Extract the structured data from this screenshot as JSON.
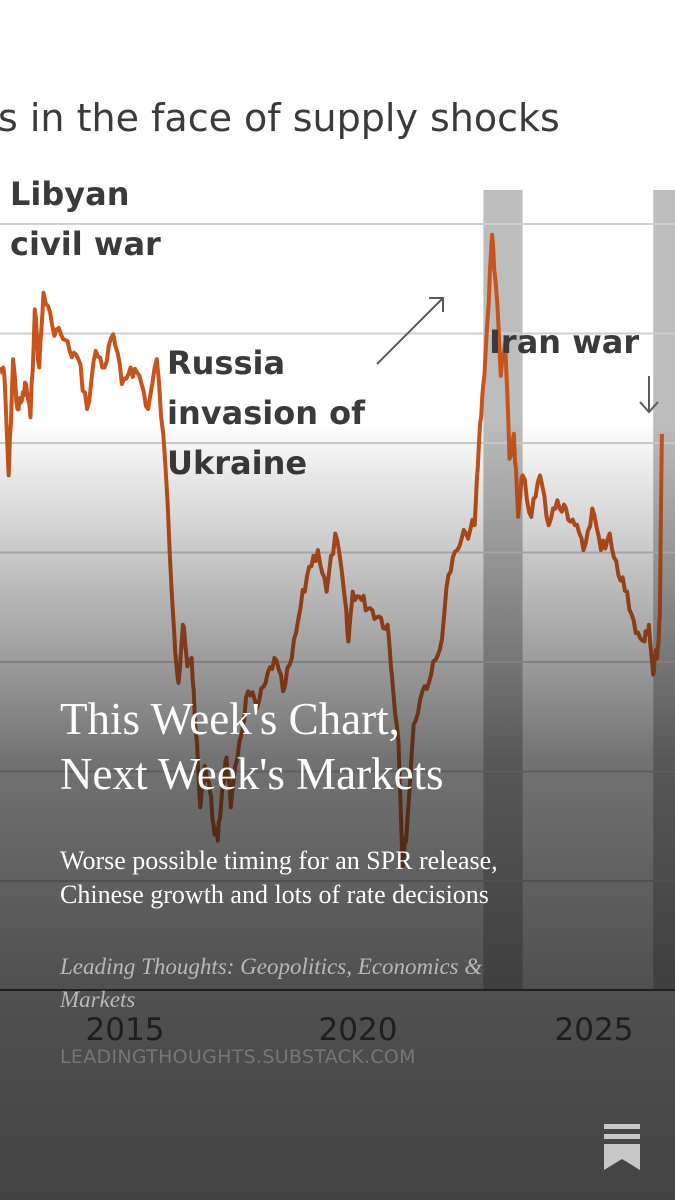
{
  "chart_data": {
    "type": "line",
    "title": "s in the face of supply shocks",
    "xlabel": "",
    "ylabel": "",
    "x_tick_labels": [
      "2015",
      "2020",
      "2025"
    ],
    "xlim": [
      2011.0,
      2026.5
    ],
    "ylim": [
      0,
      100
    ],
    "grid": true,
    "shaded_periods": [
      {
        "start": 2022.1,
        "end": 2023.0
      },
      {
        "start": 2026.0,
        "end": 2026.75
      }
    ],
    "annotations": [
      {
        "lines": [
          "Libyan",
          "civil war"
        ]
      },
      {
        "lines": [
          "Russia",
          "invasion of",
          "Ukraine"
        ]
      },
      {
        "lines": [
          "Iran war"
        ]
      }
    ],
    "series": [
      {
        "color": "#c9541b",
        "x": [
          2011.0,
          2011.1,
          2011.2,
          2011.3,
          2011.4,
          2011.5,
          2011.6,
          2011.7,
          2011.8,
          2011.9,
          2012.0,
          2012.2,
          2012.4,
          2012.6,
          2012.8,
          2013.0,
          2013.2,
          2013.4,
          2013.6,
          2013.8,
          2014.0,
          2014.2,
          2014.4,
          2014.6,
          2014.8,
          2015.0,
          2015.1,
          2015.2,
          2015.3,
          2015.4,
          2015.5,
          2015.6,
          2015.7,
          2015.8,
          2015.9,
          2016.0,
          2016.1,
          2016.2,
          2016.3,
          2016.5,
          2016.7,
          2016.9,
          2017.1,
          2017.3,
          2017.5,
          2017.7,
          2017.9,
          2018.1,
          2018.3,
          2018.5,
          2018.7,
          2018.9,
          2019.0,
          2019.1,
          2019.3,
          2019.5,
          2019.7,
          2019.9,
          2020.0,
          2020.15,
          2020.25,
          2020.35,
          2020.5,
          2020.7,
          2020.9,
          2021.1,
          2021.3,
          2021.5,
          2021.7,
          2021.9,
          2022.0,
          2022.1,
          2022.2,
          2022.3,
          2022.4,
          2022.5,
          2022.6,
          2022.7,
          2022.8,
          2022.9,
          2023.0,
          2023.2,
          2023.4,
          2023.6,
          2023.8,
          2024.0,
          2024.2,
          2024.4,
          2024.6,
          2024.8,
          2025.0,
          2025.2,
          2025.4,
          2025.6,
          2025.8,
          2025.9,
          2026.0,
          2026.05,
          2026.1,
          2026.15,
          2026.2
        ],
        "values": [
          75,
          74,
          62,
          76,
          70,
          71,
          73,
          69,
          82,
          75,
          84,
          80,
          79,
          77,
          76,
          70,
          77,
          75,
          79,
          73,
          75,
          74,
          70,
          76,
          63,
          43,
          37,
          44,
          39,
          40,
          31,
          22,
          27,
          25,
          20,
          18,
          24,
          28,
          22,
          30,
          36,
          34,
          37,
          40,
          36,
          40,
          46,
          51,
          53,
          48,
          55,
          48,
          42,
          48,
          47,
          46,
          45,
          44,
          38,
          30,
          15,
          20,
          32,
          36,
          38,
          41,
          50,
          53,
          55,
          56,
          66,
          73,
          81,
          91,
          84,
          74,
          78,
          64,
          67,
          57,
          62,
          57,
          62,
          56,
          59,
          58,
          56,
          53,
          58,
          53,
          55,
          50,
          48,
          43,
          42,
          44,
          38,
          40,
          41,
          45,
          67
        ]
      }
    ]
  },
  "post": {
    "title_lines": [
      "This Week's Chart,",
      "Next Week's Markets"
    ],
    "subtitle_lines": [
      "Worse possible timing for an SPR release,",
      "Chinese growth and lots of rate decisions"
    ],
    "publication_lines": [
      "Leading Thoughts: Geopolitics, Economics &",
      "Markets"
    ],
    "url": "LEADINGTHOUGHTS.SUBSTACK.COM"
  },
  "icons": {
    "bookmark": "bookmark-icon"
  }
}
